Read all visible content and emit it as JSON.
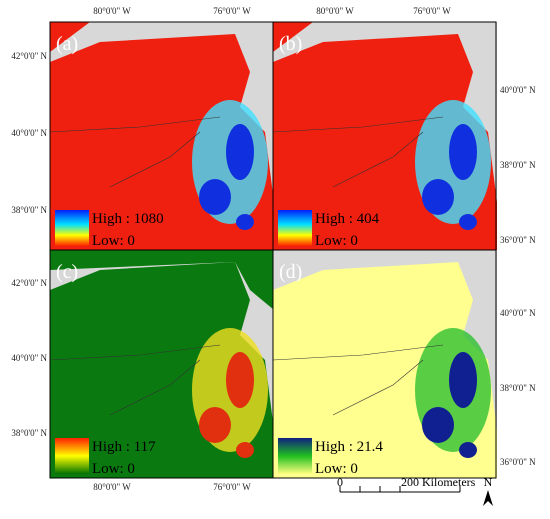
{
  "panels": [
    {
      "label": "(a)",
      "legend_high": "High : 1080",
      "legend_low": "Low: 0"
    },
    {
      "label": "(b)",
      "legend_high": "High : 404",
      "legend_low": "Low: 0"
    },
    {
      "label": "(c)",
      "legend_high": "High : 117",
      "legend_low": "Low: 0"
    },
    {
      "label": "(d)",
      "legend_high": "High : 21.4",
      "legend_low": "Low: 0"
    }
  ],
  "axes": {
    "top_left": [
      "80°0'0\" W",
      "76°0'0\" W"
    ],
    "top_right": [
      "80°0'0\" W",
      "76°0'0\" W"
    ],
    "bottom_left": [
      "80°0'0\" W",
      "76°0'0\" W"
    ],
    "left_top": [
      "42°0'0\" N",
      "40°0'0\" N",
      "38°0'0\" N"
    ],
    "left_bottom": [
      "42°0'0\" N",
      "40°0'0\" N",
      "38°0'0\" N"
    ],
    "right_top": [
      "40°0'0\" N",
      "38°0'0\" N",
      "36°0'0\" N"
    ],
    "right_bottom": [
      "40°0'0\" N",
      "38°0'0\" N",
      "36°0'0\" N"
    ]
  },
  "scale_bar": {
    "zero": "0",
    "distance": "200 Kilometers"
  },
  "north": "N"
}
